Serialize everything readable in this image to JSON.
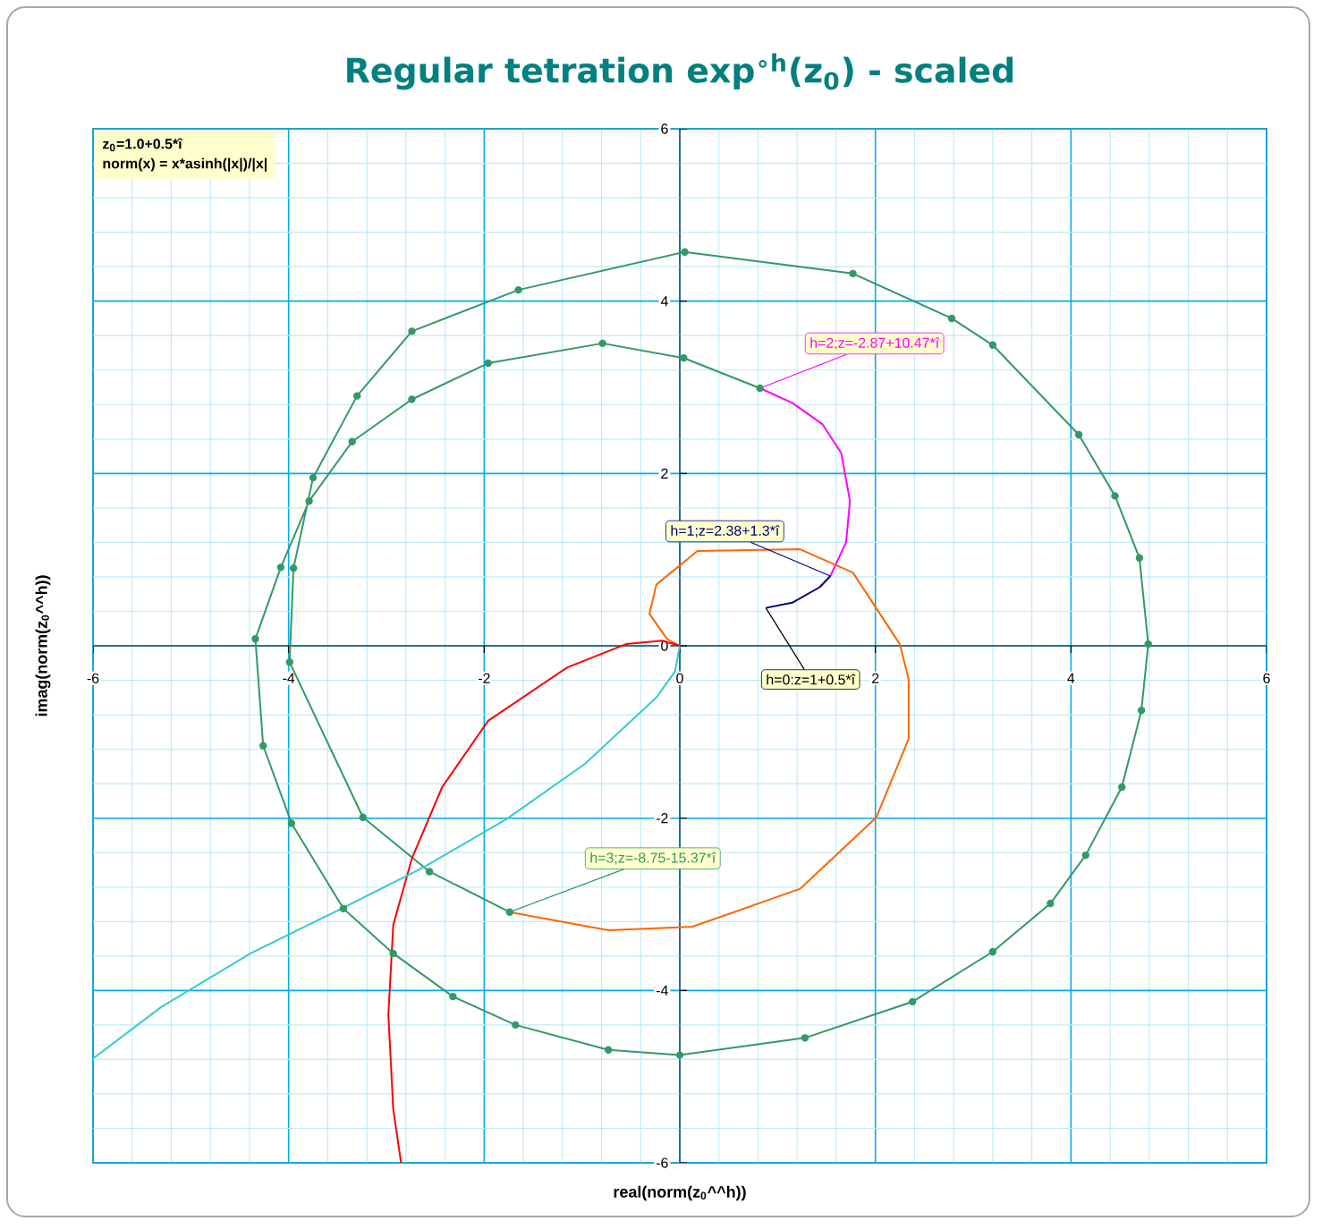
{
  "chart_data": {
    "type": "line",
    "title": "Regular tetration exp$^{∘h}$(z$_{0}$) - scaled",
    "xlabel": "real(norm(z$_{0}$^^h))",
    "ylabel": "imag(norm(z$_{0}$^^h))",
    "xlim": [
      -6,
      6
    ],
    "ylim": [
      -6,
      6
    ],
    "grid": true,
    "xticks": [
      -6,
      {
        "value": -5.6,
        "label": null
      },
      {
        "value": -5.2,
        "label": null
      },
      {
        "value": -4.8,
        "label": null
      },
      {
        "value": -4.4,
        "label": null
      },
      -4,
      {
        "value": -3.6,
        "label": null
      },
      {
        "value": -3.2,
        "label": null
      },
      {
        "value": -2.8,
        "label": null
      },
      {
        "value": -2.4,
        "label": null
      },
      -2,
      {
        "value": -1.6,
        "label": null
      },
      {
        "value": -1.2,
        "label": null
      },
      {
        "value": -0.8,
        "label": null
      },
      {
        "value": -0.4,
        "label": null
      },
      0,
      {
        "value": 0.4,
        "label": null
      },
      {
        "value": 0.8,
        "label": null
      },
      {
        "value": 1.2,
        "label": null
      },
      {
        "value": 1.6,
        "label": null
      },
      2,
      {
        "value": 2.4,
        "label": null
      },
      {
        "value": 2.8,
        "label": null
      },
      {
        "value": 3.2,
        "label": null
      },
      {
        "value": 3.6,
        "label": null
      },
      4,
      {
        "value": 4.4,
        "label": null
      },
      {
        "value": 4.8,
        "label": null
      },
      {
        "value": 5.2,
        "label": null
      },
      {
        "value": 5.6,
        "label": null
      },
      6
    ],
    "yticks": [
      -6,
      {
        "value": -5.6,
        "label": null
      },
      {
        "value": -5.2,
        "label": null
      },
      {
        "value": -4.8,
        "label": null
      },
      {
        "value": -4.4,
        "label": null
      },
      -4,
      {
        "value": -3.6,
        "label": null
      },
      {
        "value": -3.2,
        "label": null
      },
      {
        "value": -2.8,
        "label": null
      },
      {
        "value": -2.4,
        "label": null
      },
      -2,
      {
        "value": -1.6,
        "label": null
      },
      {
        "value": -1.2,
        "label": null
      },
      {
        "value": -0.8,
        "label": null
      },
      {
        "value": -0.4,
        "label": null
      },
      0,
      {
        "value": 0.4,
        "label": null
      },
      {
        "value": 0.8,
        "label": null
      },
      {
        "value": 1.2,
        "label": null
      },
      {
        "value": 1.6,
        "label": null
      },
      2,
      {
        "value": 2.4,
        "label": null
      },
      {
        "value": 2.8,
        "label": null
      },
      {
        "value": 3.2,
        "label": null
      },
      {
        "value": 3.6,
        "label": null
      },
      4,
      {
        "value": 4.4,
        "label": null
      },
      {
        "value": 4.8,
        "label": null
      },
      {
        "value": 5.2,
        "label": null
      },
      {
        "value": 5.6,
        "label": null
      },
      6
    ],
    "annotations": [
      "z$_{0}$=1.0+0.5*î",
      "norm(x) = x*asinh(|x|)/|x|",
      {
        "text": "h=0:z=1+0.5*î",
        "x": 0.88,
        "y": 0.44
      },
      {
        "text": "h=1;z=2.38+1.3*î",
        "x": 1.54,
        "y": 0.81
      },
      {
        "text": "h=2;z=-2.87+10.47*î",
        "x": 0.82,
        "y": 2.99
      },
      {
        "text": "h=3;z=-8.75-15.37*î",
        "x": -1.74,
        "y": -3.09
      }
    ],
    "series": [
      {
        "color": "#000080",
        "x": [
          0.88,
          1.15,
          1.43,
          1.54
        ],
        "values": [
          0.44,
          0.5,
          0.68,
          0.81
        ]
      },
      {
        "color": "#ff00ff",
        "x": [
          1.54,
          1.7,
          1.74,
          1.65,
          1.46,
          1.15,
          0.82
        ],
        "values": [
          0.81,
          1.2,
          1.68,
          2.24,
          2.57,
          2.82,
          2.99
        ]
      },
      {
        "color": "#339966",
        "marker": "circle",
        "x": [
          0.82,
          0.04,
          -0.79,
          -1.96,
          -2.74,
          -3.35,
          -3.79,
          -4.08,
          -4.34,
          -4.26,
          -3.97,
          -3.44,
          -2.93,
          -2.32,
          -1.68,
          -0.73,
          0,
          1.28,
          2.38,
          3.2,
          3.79,
          4.15,
          4.52,
          4.72,
          4.79,
          4.7,
          4.45,
          4.08,
          3.2,
          2.78,
          1.77,
          0.05,
          -1.65,
          -2.74,
          -3.3,
          -3.75,
          -3.95,
          -3.99,
          -3.24,
          -2.56,
          -1.74
        ],
        "values": [
          2.99,
          3.34,
          3.51,
          3.28,
          2.86,
          2.37,
          1.68,
          0.91,
          0.08,
          -1.16,
          -2.06,
          -3.05,
          -3.57,
          -4.07,
          -4.4,
          -4.69,
          -4.75,
          -4.55,
          -4.13,
          -3.55,
          -2.99,
          -2.43,
          -1.64,
          -0.75,
          0.02,
          1.02,
          1.74,
          2.45,
          3.49,
          3.8,
          4.32,
          4.57,
          4.13,
          3.65,
          2.9,
          1.95,
          0.9,
          -0.19,
          -1.99,
          -2.62,
          -3.09
        ]
      },
      {
        "color": "#ff6600",
        "x": [
          -1.74,
          -0.73,
          0.13,
          1.23,
          2.01,
          2.34,
          2.34,
          2.25,
          1.77,
          1.23,
          0.18,
          -0.24,
          -0.31,
          -0.13,
          0
        ],
        "values": [
          -3.09,
          -3.3,
          -3.26,
          -2.82,
          -1.99,
          -1.08,
          -0.39,
          0.02,
          0.85,
          1.12,
          1.1,
          0.71,
          0.37,
          0.08,
          0
        ]
      },
      {
        "color": "#ff0000",
        "x": [
          0,
          -0.18,
          -0.55,
          -1.15,
          -1.96,
          -2.43,
          -2.74,
          -2.93,
          -2.98,
          -2.93,
          -2.85
        ],
        "values": [
          0,
          0.06,
          0.02,
          -0.25,
          -0.87,
          -1.64,
          -2.47,
          -3.24,
          -4.28,
          -5.38,
          -6.0
        ]
      },
      {
        "color": "#33cccc",
        "x": [
          0,
          -0.05,
          -0.24,
          -0.97,
          -1.77,
          -2.62,
          -3.53,
          -4.39,
          -5.3,
          -6.0
        ],
        "values": [
          0,
          -0.3,
          -0.6,
          -1.37,
          -2.01,
          -2.57,
          -3.09,
          -3.57,
          -4.19,
          -4.79
        ]
      }
    ]
  }
}
